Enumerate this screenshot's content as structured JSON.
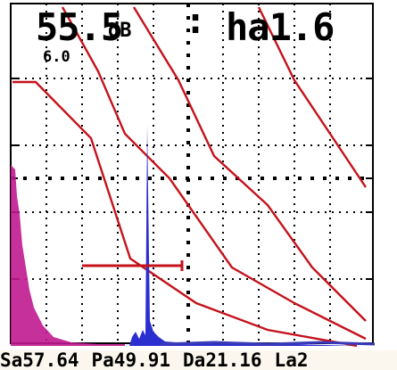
{
  "header": {
    "gain_value": "55.5",
    "gain_unit": "dB",
    "separator": ":",
    "ha_reading": "ha1.6",
    "range_value": "6.0"
  },
  "status_bar": {
    "sa": "Sa57.64",
    "pa": "Pa49.91",
    "da": "Da21.16",
    "la": "La2"
  },
  "colors": {
    "background": "#ffffff",
    "grid": "#000000",
    "dac_curves": "#c4121b",
    "gate": "#c4121b",
    "echo_main": "#2c2fd0",
    "initial_pulse": "#c0198f",
    "noise_floor": "#3a3ab8"
  },
  "icons": {
    "grid": "dotted-grid",
    "gate": "gate-bar"
  },
  "signals": {
    "peak_echo_amplitude_pct": 77,
    "initial_pulse_amplitude_pct": 59
  }
}
